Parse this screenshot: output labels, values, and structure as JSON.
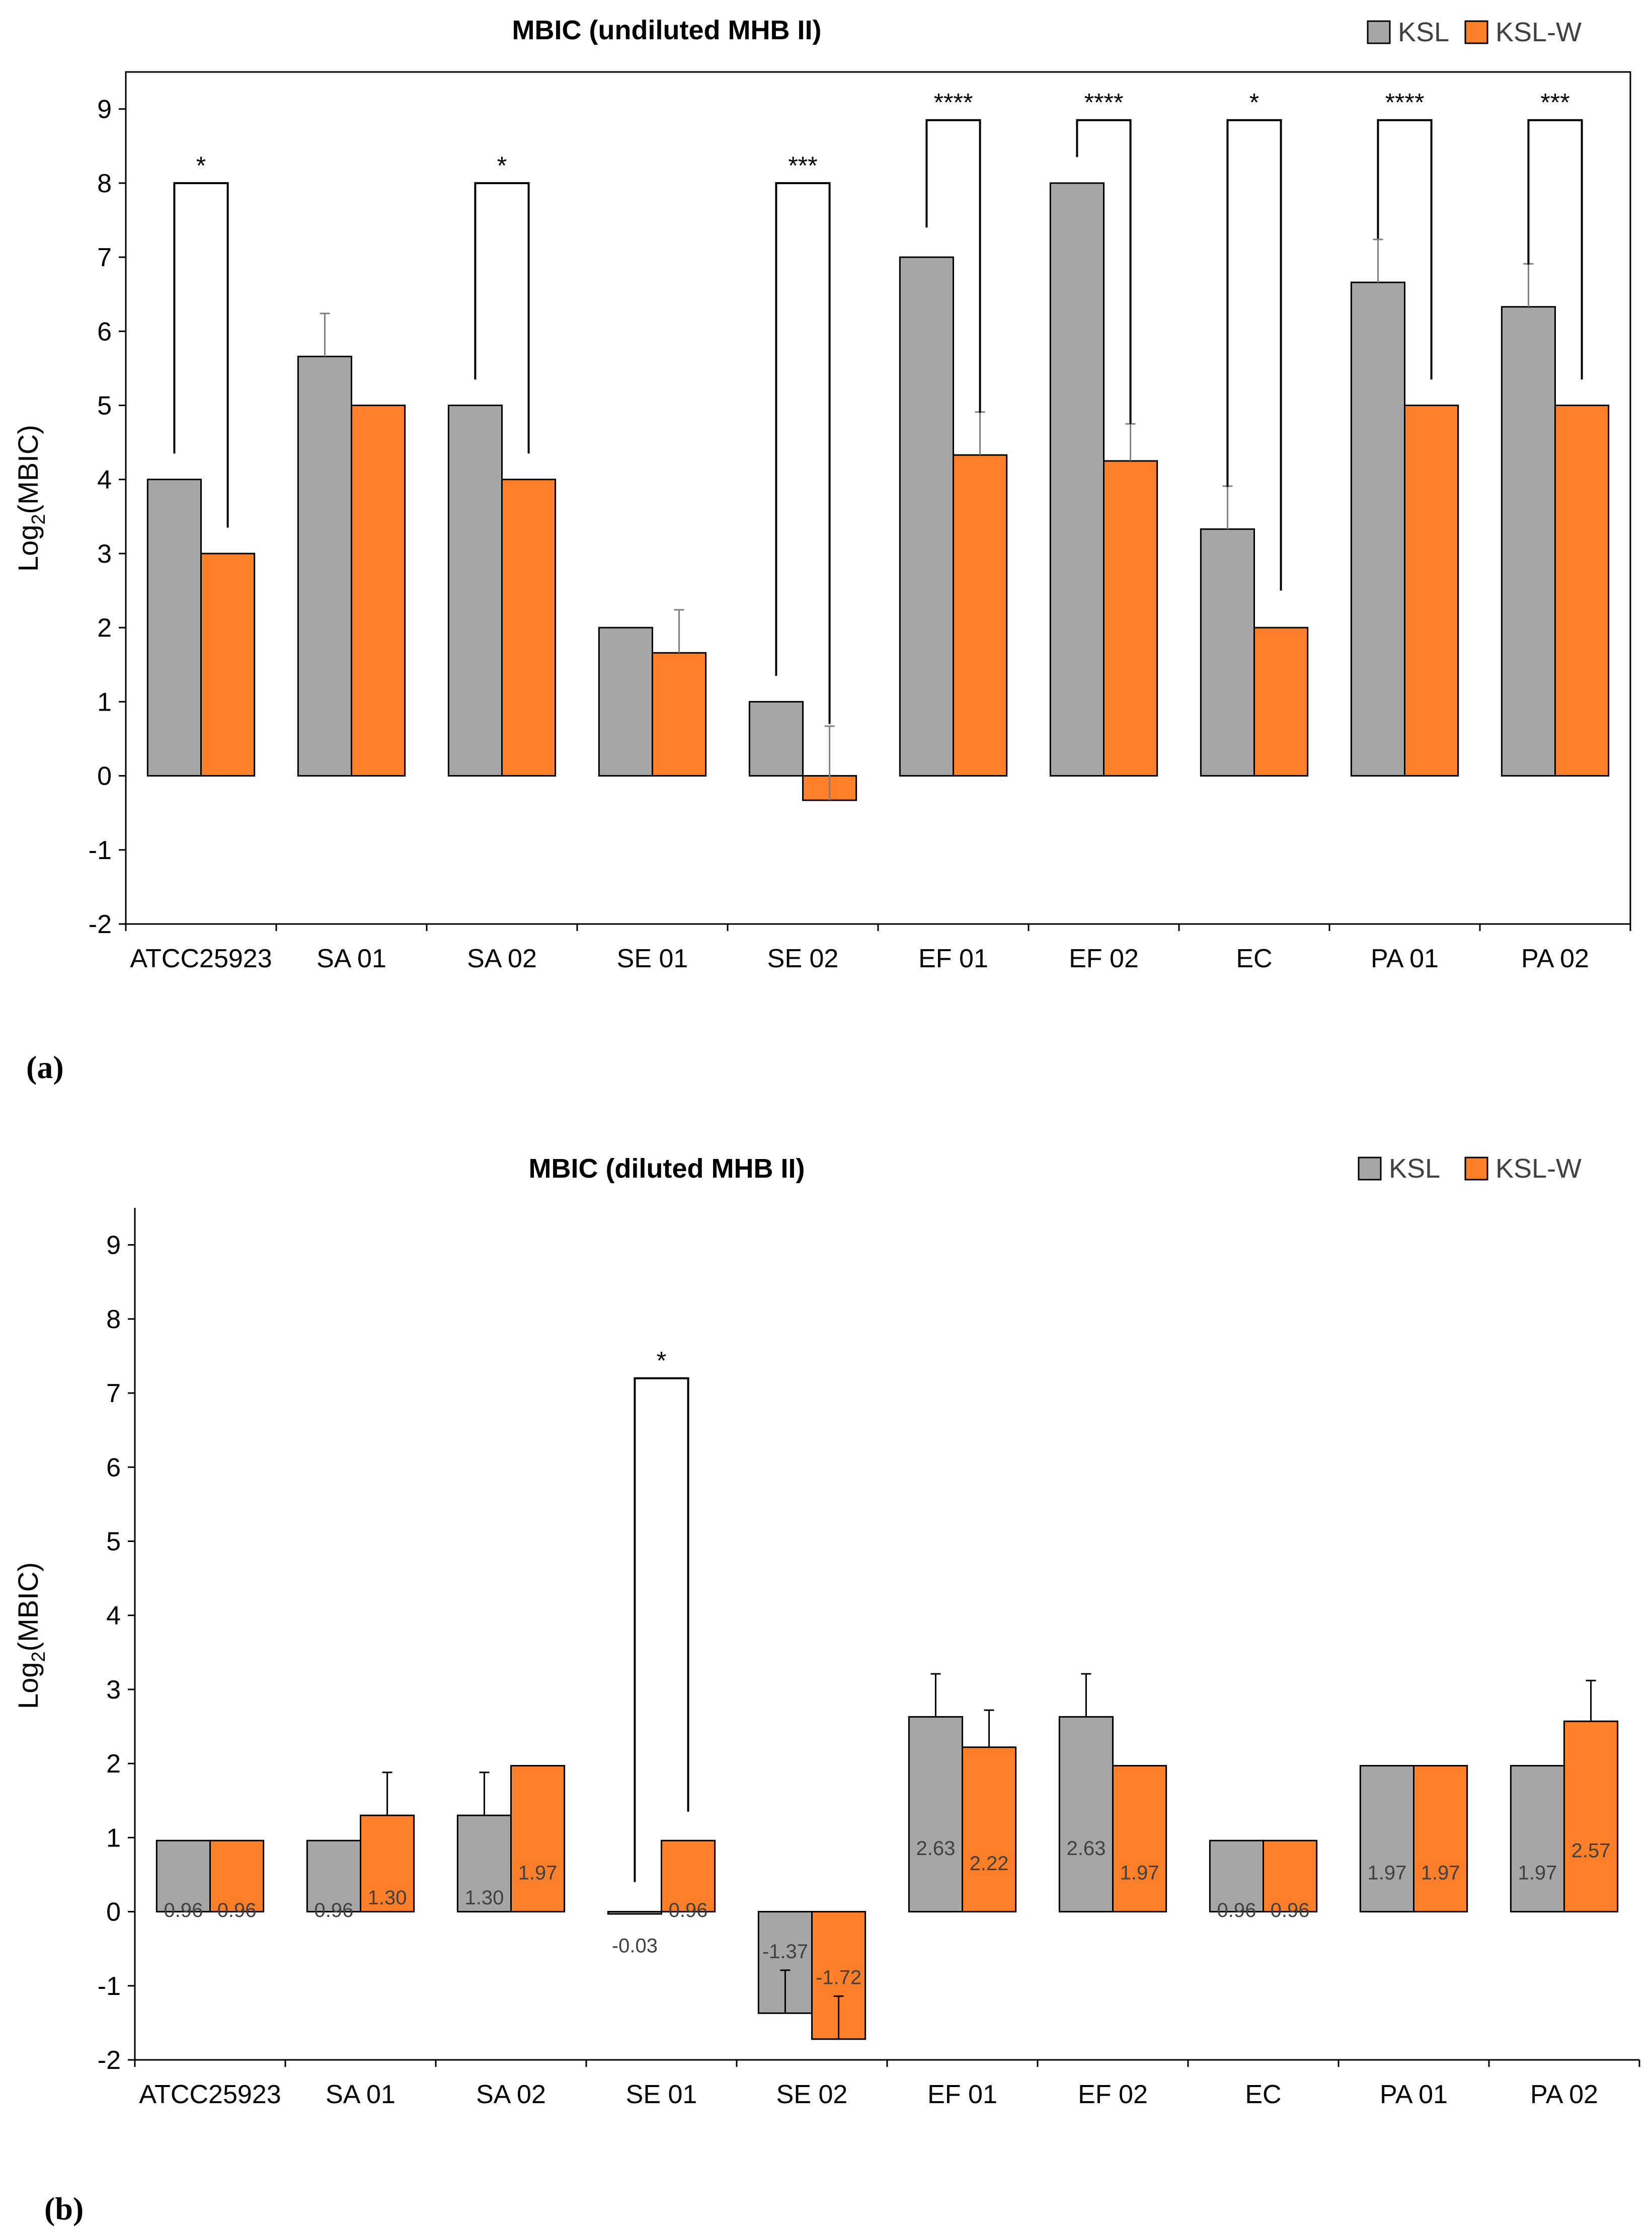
{
  "colors": {
    "ksl": "#a6a6a6",
    "kslw": "#fd7f29",
    "axis": "#000000",
    "label_text": "#404040"
  },
  "chart_data": [
    {
      "type": "bar",
      "panel_label": "(a)",
      "title": "MBIC (undiluted MHB II)",
      "xlabel": "",
      "ylabel_main": "Log",
      "ylabel_sub": "2",
      "ylabel_rest": "(MBIC)",
      "ylim": [
        -2,
        9.5
      ],
      "yticks": [
        -2,
        -1,
        0,
        1,
        2,
        3,
        4,
        5,
        6,
        7,
        8,
        9
      ],
      "grid": false,
      "legend": "top-right",
      "categories": [
        "ATCC25923",
        "SA 01",
        "SA 02",
        "SE 01",
        "SE 02",
        "EF 01",
        "EF 02",
        "EC",
        "PA 01",
        "PA 02"
      ],
      "series": [
        {
          "name": "KSL",
          "color_key": "ksl",
          "values": [
            4,
            5.66,
            5,
            2,
            1,
            7,
            8,
            3.33,
            6.66,
            6.33
          ],
          "errors": [
            0,
            0.58,
            0,
            0,
            0,
            0,
            0,
            0.58,
            0.58,
            0.58
          ]
        },
        {
          "name": "KSL-W",
          "color_key": "kslw",
          "values": [
            3,
            5,
            4,
            1.66,
            -0.33,
            4.33,
            4.25,
            2,
            5,
            5
          ],
          "errors": [
            0,
            0,
            0,
            0.58,
            1.0,
            0.58,
            0.5,
            0,
            0,
            0
          ]
        }
      ],
      "value_labels": null,
      "significance": [
        {
          "category": "ATCC25923",
          "label": "*",
          "top": 8.0,
          "left_start": 4.35,
          "right_start": 3.35
        },
        {
          "category": "SA 02",
          "label": "*",
          "top": 8.0,
          "left_start": 5.35,
          "right_start": 4.35
        },
        {
          "category": "SE 02",
          "label": "***",
          "top": 8.0,
          "left_start": 1.35,
          "right_start": 0.7
        },
        {
          "category": "EF 01",
          "label": "****",
          "top": 8.85,
          "left_start": 7.4,
          "right_start": 4.9
        },
        {
          "category": "EF 02",
          "label": "****",
          "top": 8.85,
          "left_start": 8.35,
          "right_start": 4.75
        },
        {
          "category": "EC",
          "label": "*",
          "top": 8.85,
          "left_start": 3.9,
          "right_start": 2.5
        },
        {
          "category": "PA 01",
          "label": "****",
          "top": 8.85,
          "left_start": 7.25,
          "right_start": 5.35
        },
        {
          "category": "PA 02",
          "label": "***",
          "top": 8.85,
          "left_start": 6.9,
          "right_start": 5.35
        }
      ]
    },
    {
      "type": "bar",
      "panel_label": "(b)",
      "title": "MBIC (diluted MHB II)",
      "xlabel": "",
      "ylabel_main": "Log",
      "ylabel_sub": "2",
      "ylabel_rest": "(MBIC)",
      "ylim": [
        -2,
        9.5
      ],
      "yticks": [
        -2,
        -1,
        0,
        1,
        2,
        3,
        4,
        5,
        6,
        7,
        8,
        9
      ],
      "grid": false,
      "legend": "top-right",
      "categories": [
        "ATCC25923",
        "SA 01",
        "SA 02",
        "SE 01",
        "SE 02",
        "EF 01",
        "EF 02",
        "EC",
        "PA 01",
        "PA 02"
      ],
      "series": [
        {
          "name": "KSL",
          "color_key": "ksl",
          "values": [
            0.96,
            0.96,
            1.3,
            -0.03,
            -1.37,
            2.63,
            2.63,
            0.96,
            1.97,
            1.97
          ],
          "errors": [
            0,
            0,
            0.58,
            0,
            0.58,
            0.58,
            0.58,
            0,
            0,
            0
          ]
        },
        {
          "name": "KSL-W",
          "color_key": "kslw",
          "values": [
            0.96,
            1.3,
            1.97,
            0.96,
            -1.72,
            2.22,
            1.97,
            0.96,
            1.97,
            2.57
          ],
          "errors": [
            0,
            0.58,
            0,
            0,
            0.58,
            0.5,
            0,
            0,
            0,
            0.55
          ]
        }
      ],
      "value_labels": [
        [
          "0.96",
          "0.96",
          "1.30",
          "-0.03",
          "-1.37",
          "2.63",
          "2.63",
          "0.96",
          "1.97",
          "1.97"
        ],
        [
          "0.96",
          "1.30",
          "1.97",
          "0.96",
          "-1.72",
          "2.22",
          "1.97",
          "0.96",
          "1.97",
          "2.57"
        ]
      ],
      "significance": [
        {
          "category": "SE 01",
          "label": "*",
          "top": 7.2,
          "left_start": 0.4,
          "right_start": 1.35
        }
      ]
    }
  ]
}
